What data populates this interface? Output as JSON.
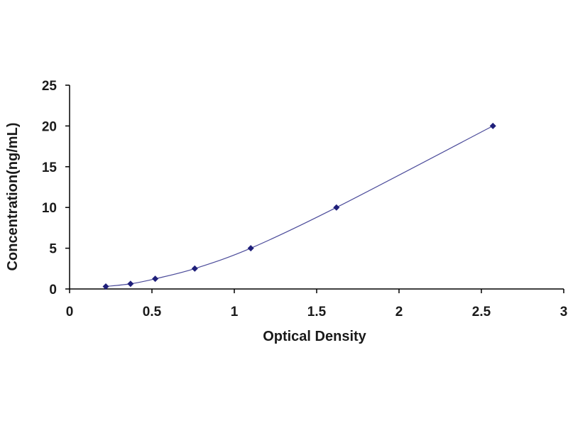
{
  "chart_data": {
    "type": "scatter",
    "title": "",
    "xlabel": "Optical Density",
    "ylabel": "Concentration(ng/mL)",
    "xlim": [
      0,
      3
    ],
    "ylim": [
      0,
      25
    ],
    "xticks": [
      "0",
      "0.5",
      "1",
      "1.5",
      "2",
      "2.5",
      "3"
    ],
    "yticks": [
      "0",
      "5",
      "10",
      "15",
      "20",
      "25"
    ],
    "grid": false,
    "legend": "none",
    "marker_color": "#1f1f7a",
    "line_color": "#4b4b9a",
    "series": [
      {
        "x": [
          0.22,
          0.37,
          0.52,
          0.76,
          1.1,
          1.62,
          2.57
        ],
        "y": [
          0.31,
          0.63,
          1.25,
          2.5,
          5.0,
          10.0,
          20.0
        ],
        "trendline": "smooth"
      }
    ]
  }
}
